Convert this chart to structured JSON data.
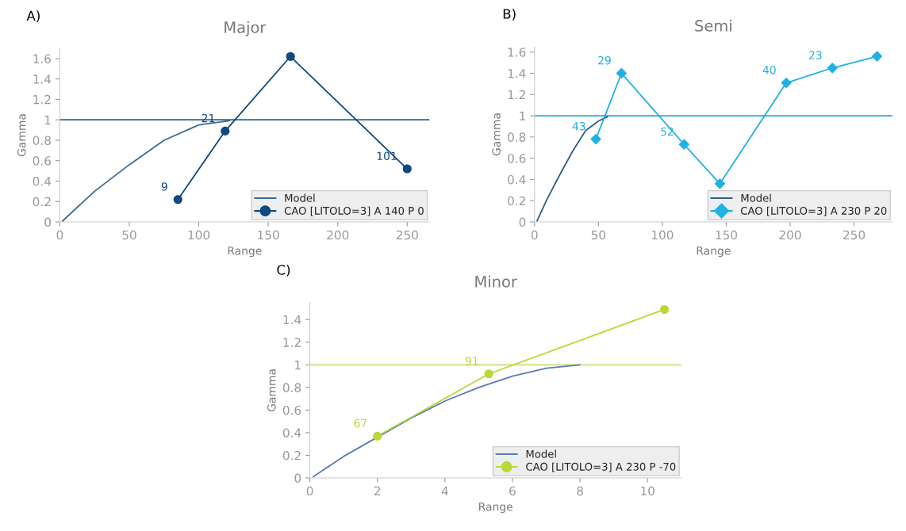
{
  "chart_data": [
    {
      "type": "line",
      "title": "Major",
      "xlabel": "Range",
      "ylabel": "Gamma",
      "annotations": [
        "A)",
        {
          "text": "9",
          "x": 85,
          "y": 0.22
        },
        {
          "text": "21",
          "x": 119,
          "y": 0.89
        },
        {
          "text": "101",
          "x": 250,
          "y": 0.52
        }
      ],
      "xlim": [
        0,
        266
      ],
      "ylim": [
        0,
        1.7
      ],
      "xticks": [
        0,
        50,
        100,
        150,
        200,
        250
      ],
      "yticks": [
        0,
        0.2,
        0.4,
        0.6,
        0.8,
        1,
        1.2,
        1.4,
        1.6
      ],
      "legend": "bottom right",
      "ref_lines": [
        {
          "axis": "y",
          "value": 1,
          "color": "#2e6490"
        }
      ],
      "series": [
        {
          "name": "Model",
          "color": "#3a6b96",
          "marker": "none",
          "x": [
            2,
            25,
            50,
            75,
            100,
            122
          ],
          "values": [
            0.01,
            0.3,
            0.56,
            0.8,
            0.95,
            0.99
          ]
        },
        {
          "name": "CAO [LITOLO=3] A 140 P 0",
          "color": "#0e4a7f",
          "marker": "circle",
          "x": [
            85,
            119,
            166,
            250
          ],
          "values": [
            0.22,
            0.89,
            1.62,
            0.52
          ]
        }
      ]
    },
    {
      "type": "line",
      "title": "Semi",
      "xlabel": "Range",
      "ylabel": "Gamma",
      "annotations": [
        "B)",
        {
          "text": "43",
          "x": 48,
          "y": 0.78
        },
        {
          "text": "29",
          "x": 68,
          "y": 1.4
        },
        {
          "text": "52",
          "x": 117,
          "y": 0.73
        },
        {
          "text": "40",
          "x": 197,
          "y": 1.31
        },
        {
          "text": "23",
          "x": 233,
          "y": 1.45
        }
      ],
      "xlim": [
        0,
        280
      ],
      "ylim": [
        0,
        1.65
      ],
      "xticks": [
        0,
        50,
        100,
        150,
        200,
        250
      ],
      "yticks": [
        0,
        0.2,
        0.4,
        0.6,
        0.8,
        1,
        1.2,
        1.4,
        1.6
      ],
      "legend": "bottom right",
      "ref_lines": [
        {
          "axis": "y",
          "value": 1,
          "color": "#29a9e0"
        }
      ],
      "series": [
        {
          "name": "Model",
          "color": "#2d5f8a",
          "marker": "none",
          "x": [
            2,
            10,
            20,
            30,
            40,
            50,
            57
          ],
          "values": [
            0.01,
            0.22,
            0.45,
            0.67,
            0.86,
            0.95,
            0.99
          ]
        },
        {
          "name": "CAO [LITOLO=3] A 230 P 20",
          "color": "#1fb0e6",
          "marker": "diamond",
          "x": [
            48,
            68,
            117,
            145,
            197,
            233,
            268
          ],
          "values": [
            0.78,
            1.4,
            0.73,
            0.36,
            1.31,
            1.45,
            1.56
          ]
        }
      ]
    },
    {
      "type": "line",
      "title": "Minor",
      "xlabel": "Range",
      "ylabel": "Gamma",
      "annotations": [
        "C)",
        {
          "text": "67",
          "x": 2,
          "y": 0.37
        },
        {
          "text": "91",
          "x": 5.3,
          "y": 0.92
        }
      ],
      "xlim": [
        0,
        11
      ],
      "ylim": [
        0,
        1.55
      ],
      "xticks": [
        0,
        2,
        4,
        6,
        8,
        10
      ],
      "yticks": [
        0,
        0.2,
        0.4,
        0.6,
        0.8,
        1,
        1.2,
        1.4
      ],
      "legend": "bottom right",
      "ref_lines": [
        {
          "axis": "y",
          "value": 1,
          "color": "#c8e07a"
        }
      ],
      "series": [
        {
          "name": "Model",
          "color": "#5b7bb5",
          "marker": "none",
          "x": [
            0.1,
            1,
            2,
            3,
            4,
            5,
            6,
            7,
            8
          ],
          "values": [
            0.01,
            0.19,
            0.36,
            0.53,
            0.68,
            0.8,
            0.9,
            0.97,
            1.0
          ]
        },
        {
          "name": "CAO [LITOLO=3] A 230 P -70",
          "color": "#b8d936",
          "marker": "circle",
          "x": [
            2,
            5.3,
            10.5
          ],
          "values": [
            0.37,
            0.92,
            1.49
          ]
        }
      ]
    }
  ]
}
